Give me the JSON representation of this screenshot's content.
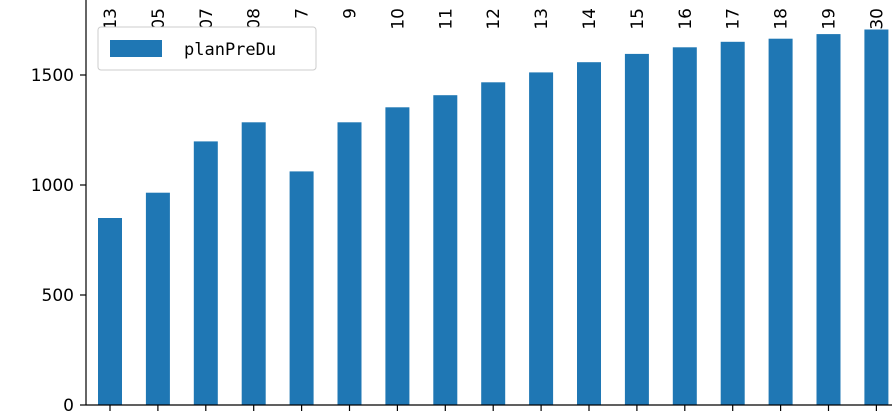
{
  "chart_data": {
    "type": "bar",
    "categories": [
      "13",
      "05",
      "07",
      "08",
      "7",
      "9",
      "10",
      "11",
      "12",
      "13",
      "14",
      "15",
      "16",
      "17",
      "18",
      "19",
      "30"
    ],
    "series": [
      {
        "name": "planPreDu",
        "color": "#1f77b4",
        "values": [
          850,
          965,
          1198,
          1285,
          1062,
          1285,
          1353,
          1408,
          1467,
          1512,
          1558,
          1596,
          1626,
          1651,
          1665,
          1686,
          1707
        ]
      }
    ],
    "title": "",
    "xlabel": "",
    "ylabel": "",
    "ylim": [
      0,
      1700
    ],
    "yticks": [
      0,
      500,
      1000,
      1500
    ],
    "grid": false,
    "legend_position": "upper-left"
  }
}
